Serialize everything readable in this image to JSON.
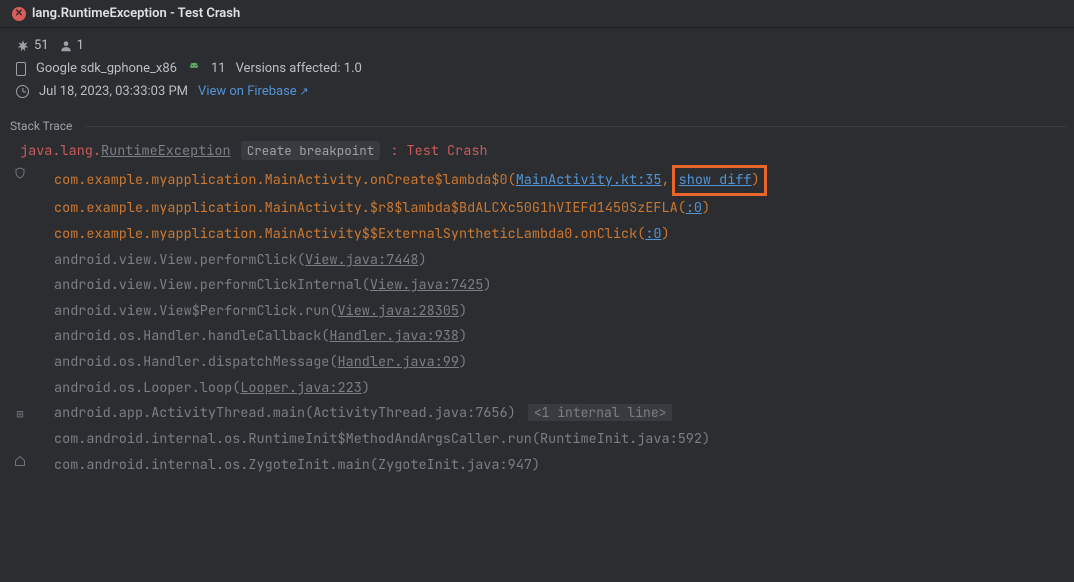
{
  "colors": {
    "bg": "#2b2d30",
    "text": "#bcbec4",
    "muted": "#7a7e85",
    "link": "#5493d4",
    "error": "#db5c5c",
    "highlight_border": "#e8662c",
    "android_green": "#5fad65",
    "keyword_orange": "#cc7832"
  },
  "header": {
    "title": "lang.RuntimeException - Test Crash"
  },
  "meta": {
    "crash_count": "51",
    "user_count": "1",
    "device_name": "Google sdk_gphone_x86",
    "os_version": "11",
    "versions_affected_label": "Versions affected: 1.0",
    "timestamp": "Jul 18, 2023, 03:33:03 PM",
    "firebase_link_label": "View on Firebase"
  },
  "section_label": "Stack Trace",
  "trace_header": {
    "pkg_prefix": "java.lang.",
    "exception": "RuntimeException",
    "breakpoint_label": "Create breakpoint",
    "colon": " : ",
    "message": "Test Crash"
  },
  "frames": [
    {
      "gutter": "shield",
      "style": "orange",
      "text": "com.example.myapplication.MainActivity.onCreate$lambda$0(",
      "link_text": "MainActivity.kt:35",
      "link_style": "src-link",
      "after_link": ",",
      "close": ")",
      "show_diff": "show diff"
    },
    {
      "style": "orange",
      "text": "com.example.myapplication.MainActivity.$r8$lambda$BdALCXc50G1hVIEFd1450SzEFLA(",
      "link_text": ":0",
      "link_style": "src-link",
      "close": ")"
    },
    {
      "style": "orange",
      "text": "com.example.myapplication.MainActivity$$ExternalSyntheticLambda0.onClick(",
      "link_text": ":0",
      "link_style": "src-link",
      "close": ")"
    },
    {
      "text": "android.view.View.performClick(",
      "link_text": "View.java:7448",
      "link_style": "src-gray",
      "close": ")"
    },
    {
      "text": "android.view.View.performClickInternal(",
      "link_text": "View.java:7425",
      "link_style": "src-gray",
      "close": ")"
    },
    {
      "text": "android.view.View$PerformClick.run(",
      "link_text": "View.java:28305",
      "link_style": "src-gray",
      "close": ")"
    },
    {
      "text": "android.os.Handler.handleCallback(",
      "link_text": "Handler.java:938",
      "link_style": "src-gray",
      "close": ")"
    },
    {
      "text": "android.os.Handler.dispatchMessage(",
      "link_text": "Handler.java:99",
      "link_style": "src-gray",
      "close": ")"
    },
    {
      "text": "android.os.Looper.loop(",
      "link_text": "Looper.java:223",
      "link_style": "src-gray",
      "close": ")"
    },
    {
      "gutter": "expand",
      "text": "android.app.ActivityThread.main(ActivityThread.java:7656)",
      "internal_note": "<1 internal line>"
    },
    {
      "text": "com.android.internal.os.RuntimeInit$MethodAndArgsCaller.run(RuntimeInit.java:592)"
    },
    {
      "gutter": "home",
      "text": "com.android.internal.os.ZygoteInit.main(ZygoteInit.java:947)"
    }
  ]
}
